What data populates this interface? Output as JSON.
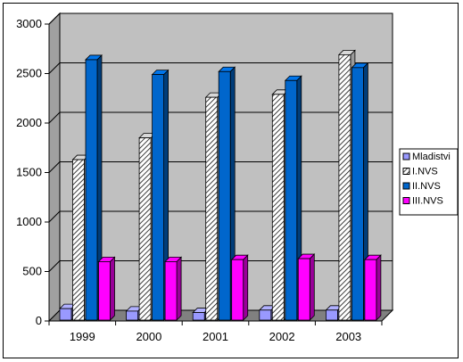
{
  "chart_data": {
    "type": "bar",
    "style": "3d-clustered-column",
    "categories": [
      "1999",
      "2000",
      "2001",
      "2002",
      "2003"
    ],
    "series": [
      {
        "name": "Mladistvi",
        "values": [
          125,
          100,
          85,
          110,
          110
        ],
        "color": "#9999ff",
        "pattern": "solid"
      },
      {
        "name": "I.NVS",
        "values": [
          1630,
          1850,
          2260,
          2290,
          2690
        ],
        "color": "#ffffff",
        "pattern": "diagonal-hatch"
      },
      {
        "name": "II.NVS",
        "values": [
          2640,
          2490,
          2520,
          2430,
          2560
        ],
        "color": "#0066cc",
        "pattern": "solid"
      },
      {
        "name": "III.NVS",
        "values": [
          600,
          600,
          620,
          630,
          620
        ],
        "color": "#ff00ff",
        "pattern": "solid"
      }
    ],
    "y_ticks": [
      "0",
      "500",
      "1000",
      "1500",
      "2000",
      "2500",
      "3000"
    ],
    "ylim": [
      0,
      3000
    ],
    "grid": true,
    "legend": "right",
    "wall_color": "#c0c0c0",
    "floor_color": "#808080"
  }
}
